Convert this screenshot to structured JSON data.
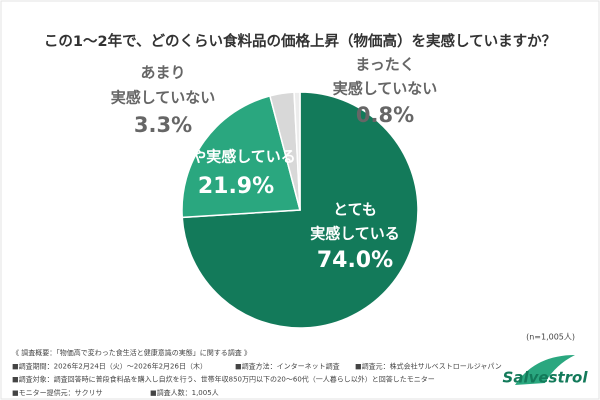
{
  "chart_data": {
    "type": "pie",
    "title": "この1〜2年で、どのくらい食料品の価格上昇（物価高）を実感していますか？",
    "categories": [
      [
        "とても",
        "実感している"
      ],
      [
        "やや実感している"
      ],
      [
        "あまり",
        "実感していない"
      ],
      [
        "まったく",
        "実感していない"
      ]
    ],
    "values": [
      74.0,
      21.9,
      3.3,
      0.8
    ],
    "value_labels": [
      "74.0%",
      "21.9%",
      "3.3%",
      "0.8%"
    ],
    "colors": [
      "#137a5a",
      "#2aa77f",
      "#d8d8d8",
      "#ececec"
    ],
    "sample_size": "(n=1,005人)",
    "notes": [
      [
        "《 調査概要：「物価高で変わった食生活と健康意識の実態」に関する調査 》"
      ],
      [
        "■調査期間：2026年2月24日（火）～2026年2月26日（木）",
        "■調査方法：インターネット調査",
        "■調査元：株式会社サルベストロールジャパン"
      ],
      [
        "■調査対象：調査回答時に普段食料品を購入し自炊を行う、世帯年収850万円以下の20～60代（一人暮らし以外）と回答したモニター"
      ],
      [
        "■モニター提供元：サクリサ",
        "■調査人数：1,005人"
      ]
    ],
    "logo": "Salvestrol"
  }
}
